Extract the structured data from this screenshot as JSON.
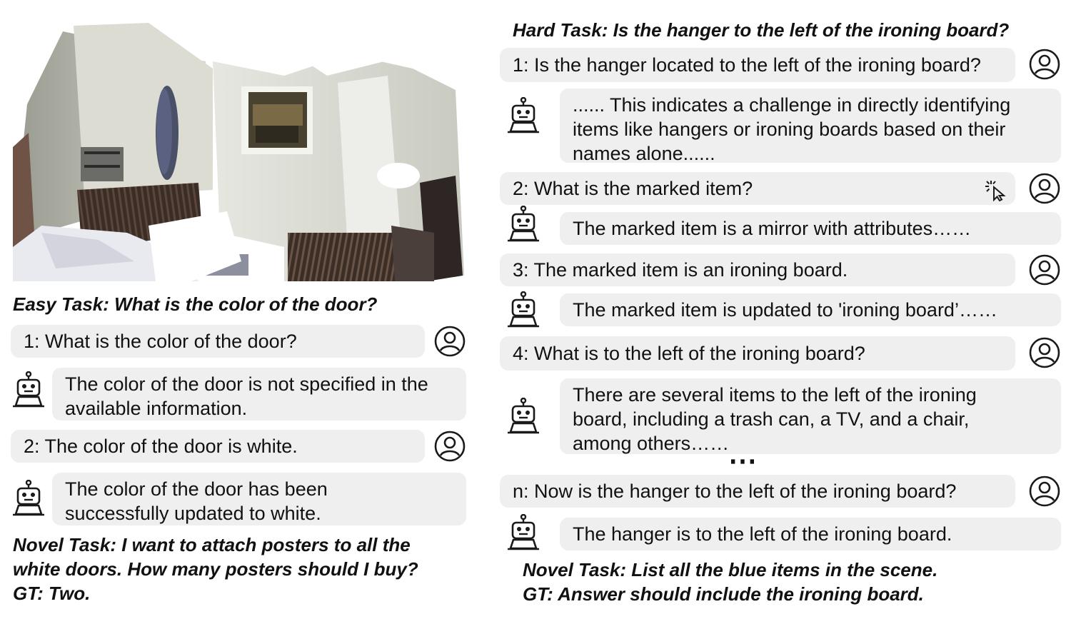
{
  "easy": {
    "task": "Easy Task: What is the color of the door?",
    "q1": "1: What is the color of the door?",
    "a1": "The color of the door is not specified in the\navailable information.",
    "q2": "2: The color of the door is white.",
    "a2": "The color of the door has been\nsuccessfully updated to white."
  },
  "novel_left": {
    "line1": "Novel Task: I want to attach posters to all the",
    "line2": "white doors. How many posters should I buy?",
    "line3": "GT: Two."
  },
  "hard": {
    "task": "Hard Task: Is the hanger to the left of the ironing board?",
    "q1": "1: Is the hanger located to the left of the ironing board?",
    "a1": "...... This indicates a challenge in directly identifying\nitems like hangers or ironing boards based on their\nnames alone......",
    "q2": "2: What is the marked item?",
    "a2": "The marked item is a mirror with attributes……",
    "q3": "3: The marked item is an ironing board.",
    "a3": "The marked item is updated to 'ironing board’……",
    "q4": "4: What is to the left of the ironing board?",
    "a4": "There are several items to the left of the ironing\nboard, including a trash can, a TV, and a chair,\namong others……",
    "ellipsis": "⋯",
    "qn": "n: Now is the hanger to the left of the ironing board?",
    "an": "The hanger is to the left of the ironing board."
  },
  "novel_right": {
    "line1": "Novel Task: List all the blue items in the scene.",
    "line2": "GT: Answer should include the ironing board."
  },
  "colors": {
    "bubble": "#efefef",
    "text": "#111111",
    "icon_stroke": "#1a1a1a"
  },
  "icons": [
    "user-icon",
    "robot-icon",
    "cursor-click-icon"
  ]
}
